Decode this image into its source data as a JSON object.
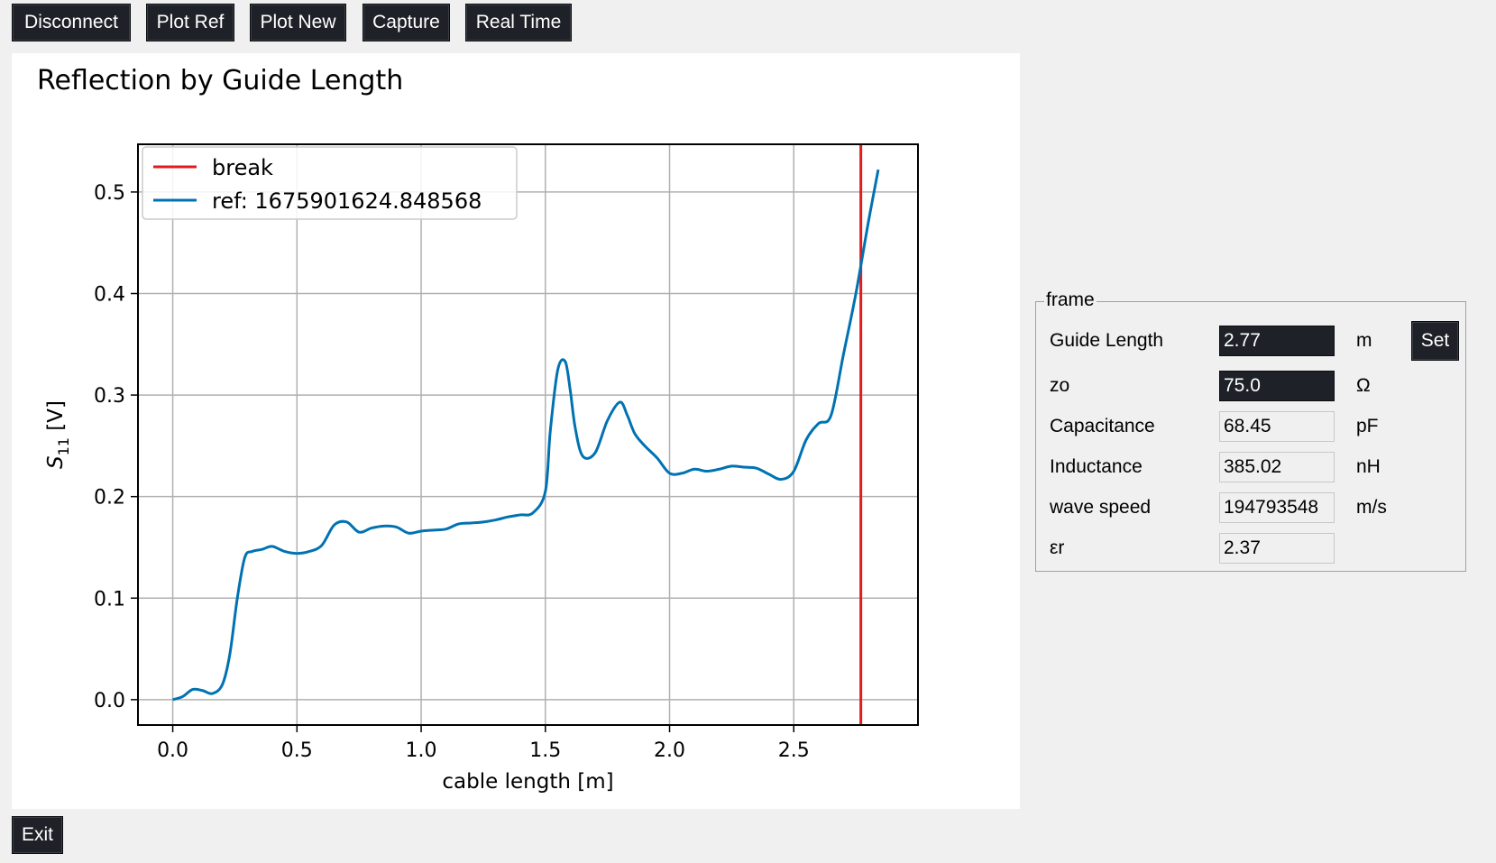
{
  "toolbar": {
    "disconnect_label": "Disconnect",
    "plot_ref_label": "Plot Ref",
    "plot_new_label": "Plot New",
    "capture_label": "Capture",
    "real_time_label": "Real Time"
  },
  "exit_label": "Exit",
  "colors": {
    "button_bg": "#1e2127",
    "window_bg": "#f0f0f0",
    "series_ref": "#0072b2",
    "series_break": "#e41a1c"
  },
  "chart_data": {
    "type": "line",
    "title": "Reflection by Guide Length",
    "xlabel": "cable length [m]",
    "ylabel": "S11 [V]",
    "ylabel_main": "S",
    "ylabel_sub": "11",
    "ylabel_unit": " [V]",
    "xlim": [
      -0.14,
      3.0
    ],
    "ylim": [
      -0.025,
      0.547
    ],
    "xticks": [
      0.0,
      0.5,
      1.0,
      1.5,
      2.0,
      2.5
    ],
    "xtick_labels": [
      "0.0",
      "0.5",
      "1.0",
      "1.5",
      "2.0",
      "2.5"
    ],
    "yticks": [
      0.0,
      0.1,
      0.2,
      0.3,
      0.4,
      0.5
    ],
    "ytick_labels": [
      "0.0",
      "0.1",
      "0.2",
      "0.3",
      "0.4",
      "0.5"
    ],
    "grid": true,
    "legend_position": "top-left",
    "series": [
      {
        "name": "break",
        "kind": "vline",
        "x": 2.77,
        "color": "#e41a1c"
      },
      {
        "name": "ref: 1675901624.848568",
        "kind": "line",
        "color": "#0072b2",
        "x": [
          0.0,
          0.04,
          0.08,
          0.12,
          0.16,
          0.2,
          0.23,
          0.26,
          0.29,
          0.32,
          0.36,
          0.4,
          0.45,
          0.5,
          0.55,
          0.6,
          0.65,
          0.7,
          0.75,
          0.8,
          0.85,
          0.9,
          0.95,
          1.0,
          1.05,
          1.1,
          1.15,
          1.2,
          1.25,
          1.3,
          1.35,
          1.4,
          1.45,
          1.5,
          1.52,
          1.55,
          1.58,
          1.6,
          1.62,
          1.65,
          1.7,
          1.75,
          1.8,
          1.83,
          1.86,
          1.9,
          1.95,
          2.0,
          2.05,
          2.1,
          2.15,
          2.2,
          2.25,
          2.3,
          2.35,
          2.4,
          2.45,
          2.5,
          2.55,
          2.6,
          2.65,
          2.7,
          2.75,
          2.8,
          2.84
        ],
        "values": [
          0.0,
          0.003,
          0.01,
          0.009,
          0.006,
          0.015,
          0.045,
          0.1,
          0.14,
          0.146,
          0.148,
          0.151,
          0.146,
          0.144,
          0.146,
          0.152,
          0.172,
          0.175,
          0.165,
          0.169,
          0.171,
          0.17,
          0.164,
          0.166,
          0.167,
          0.168,
          0.173,
          0.174,
          0.175,
          0.177,
          0.18,
          0.182,
          0.184,
          0.205,
          0.265,
          0.325,
          0.333,
          0.305,
          0.268,
          0.24,
          0.243,
          0.275,
          0.293,
          0.28,
          0.262,
          0.25,
          0.238,
          0.223,
          0.223,
          0.227,
          0.225,
          0.227,
          0.23,
          0.229,
          0.228,
          0.222,
          0.217,
          0.225,
          0.256,
          0.272,
          0.28,
          0.34,
          0.4,
          0.47,
          0.522
        ]
      }
    ]
  },
  "frame": {
    "title": "frame",
    "set_label": "Set",
    "rows": [
      {
        "label": "Guide Length",
        "value": "2.77",
        "unit": "m"
      },
      {
        "label": "zo",
        "value": "75.0",
        "unit": "Ω"
      },
      {
        "label": "Capacitance",
        "value": "68.45",
        "unit": "pF"
      },
      {
        "label": "Inductance",
        "value": "385.02",
        "unit": "nH"
      },
      {
        "label": "wave speed",
        "value": "194793548",
        "unit": "m/s"
      },
      {
        "label": "εr",
        "value": "2.37",
        "unit": ""
      }
    ]
  }
}
